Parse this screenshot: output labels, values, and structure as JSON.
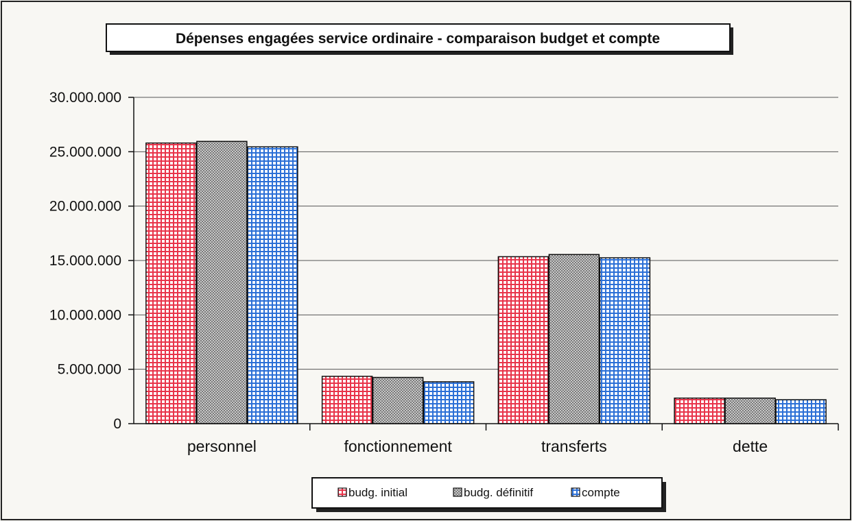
{
  "chart_data": {
    "type": "bar",
    "title": "Dépenses engagées service ordinaire - comparaison budget et compte",
    "xlabel": "",
    "ylabel": "",
    "categories": [
      "personnel",
      "fonctionnement",
      "transferts",
      "dette"
    ],
    "series": [
      {
        "name": "budg. initial",
        "values": [
          25800000,
          4350000,
          15350000,
          2350000
        ]
      },
      {
        "name": "budg. définitif",
        "values": [
          25950000,
          4250000,
          15550000,
          2350000
        ]
      },
      {
        "name": "compte",
        "values": [
          25450000,
          3850000,
          15250000,
          2200000
        ]
      }
    ],
    "ylim": [
      0,
      30000000
    ],
    "yticks": [
      0,
      5000000,
      10000000,
      15000000,
      20000000,
      25000000,
      30000000
    ],
    "ytick_labels": [
      "0",
      "5.000.000",
      "10.000.000",
      "15.000.000",
      "20.000.000",
      "25.000.000",
      "30.000.000"
    ],
    "grid": true,
    "legend_position": "bottom",
    "colors": {
      "budg_initial": "#e8344a",
      "budg_definitif": "#8f8f8f",
      "compte": "#2b6fd6",
      "frame": "#111111",
      "grid": "#555555"
    }
  }
}
